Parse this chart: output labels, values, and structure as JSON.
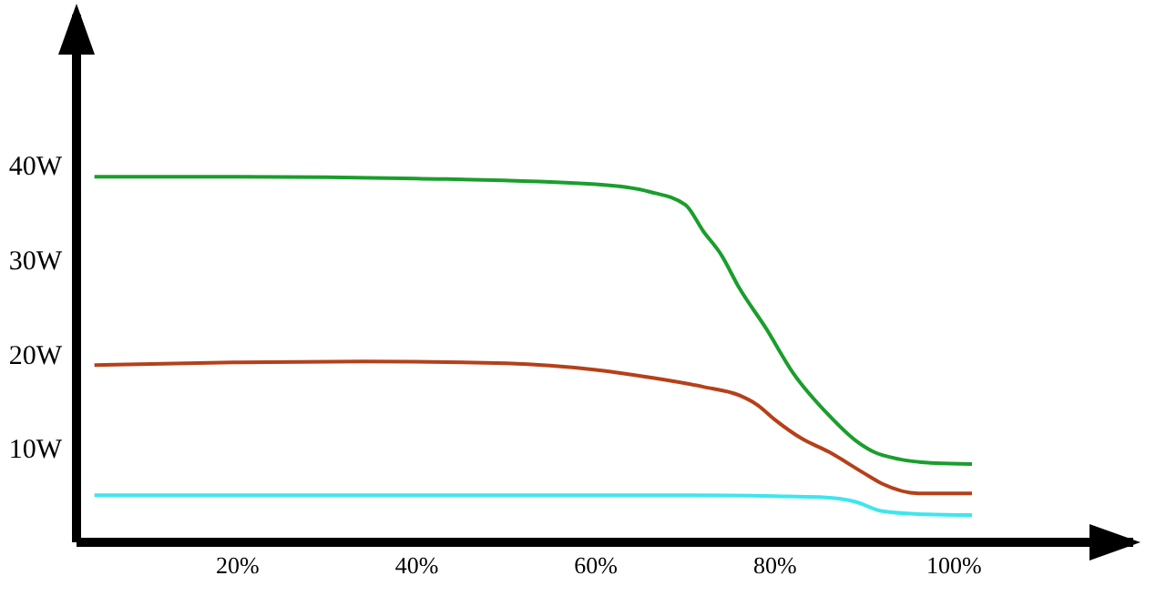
{
  "chart_data": {
    "type": "line",
    "xlim": [
      2,
      120
    ],
    "ylim": [
      0,
      56
    ],
    "xticks": [
      {
        "value": 20,
        "label": "20%"
      },
      {
        "value": 40,
        "label": "40%"
      },
      {
        "value": 60,
        "label": "60%"
      },
      {
        "value": 80,
        "label": "80%"
      },
      {
        "value": 100,
        "label": "100%"
      }
    ],
    "yticks": [
      {
        "value": 10,
        "label": "10W"
      },
      {
        "value": 20,
        "label": "20W"
      },
      {
        "value": 30,
        "label": "30W"
      },
      {
        "value": 40,
        "label": "40W"
      }
    ],
    "grid": false,
    "legend": false,
    "marker": "none",
    "line_style": "solid",
    "series": [
      {
        "color": "#1a9e2c",
        "x": [
          4,
          20,
          40,
          60,
          66,
          70,
          72,
          74,
          76,
          79,
          82,
          86,
          89,
          91,
          94,
          98,
          102
        ],
        "values": [
          38.8,
          38.8,
          38.6,
          38,
          37.2,
          35.8,
          33,
          30.5,
          27,
          22.7,
          18,
          13.5,
          10.8,
          9.6,
          8.8,
          8.4,
          8.3
        ]
      },
      {
        "color": "#b5401a",
        "x": [
          4,
          20,
          34,
          50,
          60,
          66,
          72,
          76,
          78,
          80,
          83,
          86,
          90,
          92,
          96,
          102
        ],
        "values": [
          18.8,
          19.1,
          19.2,
          19,
          18.3,
          17.5,
          16.5,
          15.6,
          14.6,
          13,
          11,
          9.6,
          7.3,
          6.2,
          5.2,
          5.2
        ]
      },
      {
        "color": "#3ee6ee",
        "x": [
          4,
          20,
          40,
          60,
          70,
          80,
          85,
          89,
          92,
          96,
          102
        ],
        "values": [
          5,
          5,
          5,
          5,
          5,
          4.9,
          4.8,
          4.3,
          3.3,
          3,
          2.9
        ]
      }
    ]
  }
}
